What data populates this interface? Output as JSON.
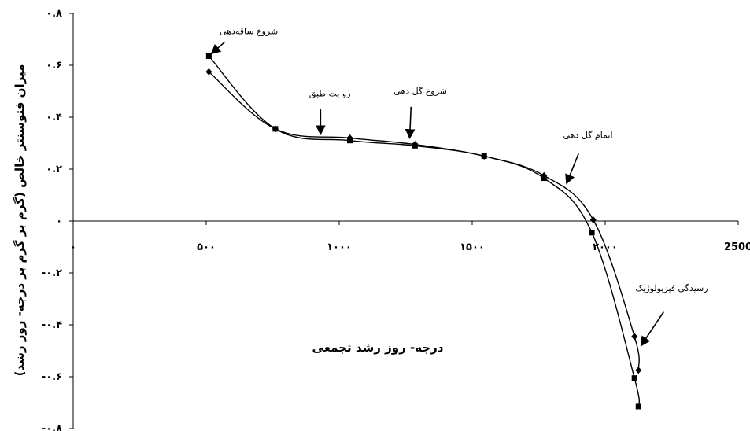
{
  "chart_data": {
    "type": "line",
    "xlabel": "درجه- روز رشد تجمعی",
    "ylabel": "میزان فتوسنتز خالص (گرم بر گرم بر درجه- روز رشد)",
    "xlim": [
      0,
      2500
    ],
    "ylim": [
      -0.8,
      0.8
    ],
    "x_ticks": [
      {
        "value": 0,
        "label": "۰"
      },
      {
        "value": 500,
        "label": "۵۰۰"
      },
      {
        "value": 1000,
        "label": "۱۰۰۰"
      },
      {
        "value": 1500,
        "label": "۱۵۰۰"
      },
      {
        "value": 2000,
        "label": "۲۰۰۰"
      },
      {
        "value": 2500,
        "label": "2500"
      }
    ],
    "y_ticks": [
      {
        "value": 0.8,
        "label": "۰.۸"
      },
      {
        "value": 0.6,
        "label": "۰.۶"
      },
      {
        "value": 0.4,
        "label": "۰.۴"
      },
      {
        "value": 0.2,
        "label": "۰.۲"
      },
      {
        "value": 0,
        "label": "۰"
      },
      {
        "value": -0.2,
        "label": "-۰.۲"
      },
      {
        "value": -0.4,
        "label": "-۰.۴"
      },
      {
        "value": -0.6,
        "label": "-۰.۶"
      },
      {
        "value": -0.8,
        "label": "-۰.۸"
      }
    ],
    "grid": false,
    "series": [
      {
        "marker": "square",
        "points": [
          [
            510,
            0.635
          ],
          [
            760,
            0.355
          ],
          [
            1040,
            0.31
          ],
          [
            1285,
            0.29
          ],
          [
            1545,
            0.25
          ],
          [
            1770,
            0.165
          ],
          [
            1950,
            -0.045
          ],
          [
            2110,
            -0.605
          ],
          [
            2125,
            -0.715
          ]
        ]
      },
      {
        "marker": "diamond",
        "points": [
          [
            510,
            0.575
          ],
          [
            760,
            0.355
          ],
          [
            1040,
            0.32
          ],
          [
            1285,
            0.295
          ],
          [
            1545,
            0.25
          ],
          [
            1770,
            0.175
          ],
          [
            1955,
            0.005
          ],
          [
            2110,
            -0.445
          ],
          [
            2125,
            -0.575
          ]
        ]
      }
    ],
    "annotations": [
      {
        "text": "شروع ساقه‌دهی",
        "x": 660,
        "y": 0.72,
        "arrow_from": [
          570,
          0.69
        ],
        "arrow_to": [
          520,
          0.645
        ]
      },
      {
        "text": "رو بت طبق",
        "x": 965,
        "y": 0.48,
        "arrow_from": [
          930,
          0.43
        ],
        "arrow_to": [
          930,
          0.335
        ]
      },
      {
        "text": "شروع گل دهی",
        "x": 1305,
        "y": 0.49,
        "arrow_from": [
          1270,
          0.44
        ],
        "arrow_to": [
          1265,
          0.32
        ]
      },
      {
        "text": "اتمام گل دهی",
        "x": 1935,
        "y": 0.32,
        "arrow_from": [
          1900,
          0.26
        ],
        "arrow_to": [
          1855,
          0.145
        ]
      },
      {
        "text": "رسیدگی فیزیولوژیک",
        "x": 2250,
        "y": -0.27,
        "arrow_from": [
          2220,
          -0.35
        ],
        "arrow_to": [
          2135,
          -0.48
        ]
      }
    ]
  }
}
